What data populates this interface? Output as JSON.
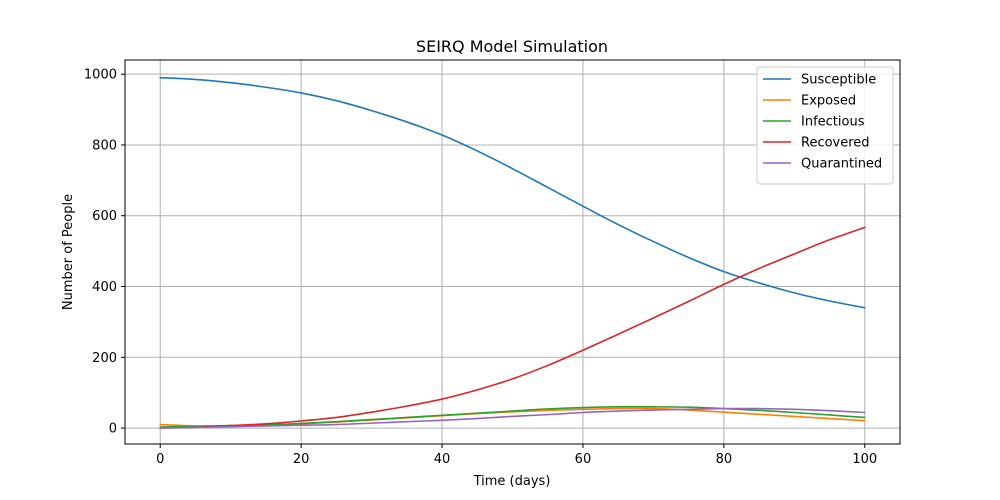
{
  "chart_data": {
    "type": "line",
    "title": "SEIRQ Model Simulation",
    "xlabel": "Time (days)",
    "ylabel": "Number of People",
    "xlim": [
      -5,
      105
    ],
    "ylim": [
      -45,
      1040
    ],
    "xticks": [
      0,
      20,
      40,
      60,
      80,
      100
    ],
    "yticks": [
      0,
      200,
      400,
      600,
      800,
      1000
    ],
    "grid": true,
    "legend_position": "top-right",
    "x": [
      0,
      5,
      10,
      15,
      20,
      25,
      30,
      35,
      40,
      45,
      50,
      55,
      60,
      65,
      70,
      75,
      80,
      85,
      90,
      95,
      100
    ],
    "series": [
      {
        "name": "Susceptible",
        "color": "#1f77b4",
        "values": [
          990,
          985,
          976,
          963,
          947,
          925,
          897,
          865,
          828,
          783,
          733,
          680,
          627,
          575,
          527,
          482,
          442,
          410,
          382,
          359,
          340
        ]
      },
      {
        "name": "Exposed",
        "color": "#ff7f0e",
        "values": [
          10,
          6,
          6,
          8,
          12,
          17,
          23,
          29,
          35,
          41,
          46,
          50,
          53,
          55,
          55,
          51,
          45,
          39,
          33,
          27,
          21
        ]
      },
      {
        "name": "Infectious",
        "color": "#2ca02c",
        "values": [
          3,
          5,
          7,
          9,
          13,
          18,
          24,
          30,
          36,
          42,
          48,
          54,
          58,
          60,
          60,
          59,
          55,
          50,
          44,
          37,
          30
        ]
      },
      {
        "name": "Recovered",
        "color": "#d62728",
        "values": [
          0,
          2,
          7,
          12,
          20,
          30,
          45,
          62,
          82,
          108,
          139,
          177,
          220,
          265,
          311,
          358,
          406,
          451,
          492,
          532,
          567
        ]
      },
      {
        "name": "Quarantined",
        "color": "#9467bd",
        "values": [
          0,
          2,
          4,
          6,
          8,
          10,
          14,
          18,
          22,
          27,
          33,
          38,
          44,
          48,
          51,
          53,
          55,
          55,
          53,
          49,
          44
        ]
      }
    ]
  }
}
